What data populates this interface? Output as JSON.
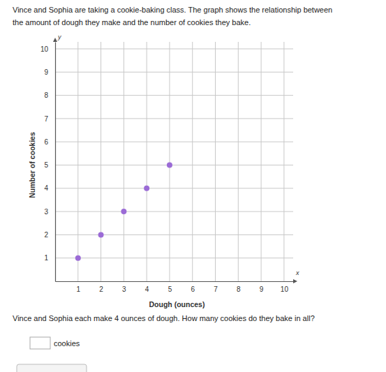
{
  "page": {
    "intro": [
      "Vince and Sophia are taking a cookie-baking class. The graph shows the relationship between",
      "the amount of dough they make and the number of cookies they bake."
    ],
    "question": "Vince and Sophia each make 4 ounces of dough. How many cookies do they bake in all?",
    "answer_unit": "cookies"
  },
  "chart_data": {
    "type": "scatter",
    "x_label": "Dough (ounces)",
    "y_label": "Number of cookies",
    "annotations": [
      "x",
      "y"
    ],
    "x": [
      1,
      2,
      3,
      4,
      5
    ],
    "values": [
      1,
      2,
      3,
      4,
      5
    ],
    "color": "#9b6bd6",
    "marker": "circle",
    "xlim": [
      0,
      10.4
    ],
    "ylim": [
      0,
      10.3
    ],
    "xticks": [
      1,
      2,
      3,
      4,
      5,
      6,
      7,
      8,
      9,
      10
    ],
    "yticks": [
      1,
      2,
      3,
      4,
      5,
      6,
      7,
      8,
      9,
      10
    ],
    "grid": true
  }
}
